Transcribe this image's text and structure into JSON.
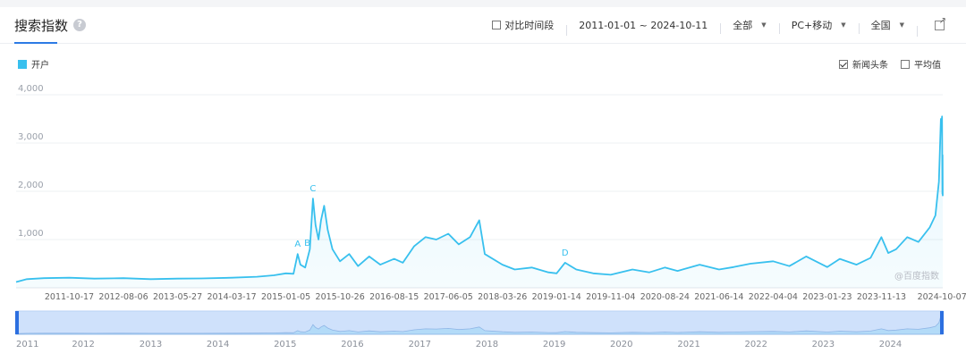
{
  "header": {
    "title": "搜索指数",
    "help_icon": "question-icon",
    "compare_label": "对比时间段",
    "date_range": "2011-01-01 ~ 2024-10-11",
    "scope": "全部",
    "device": "PC+移动",
    "region": "全国",
    "export_icon": "external-link-icon"
  },
  "legend": {
    "label": "开户",
    "color": "#38c0ee"
  },
  "options": {
    "news_label": "新闻头条",
    "news_checked": true,
    "avg_label": "平均值",
    "avg_checked": false
  },
  "watermark": "@百度指数",
  "colors": {
    "line": "#38c0ee",
    "accent": "#2c7be5",
    "grid": "#eef0f3"
  },
  "chart_data": {
    "type": "line",
    "ylim": [
      0,
      4000
    ],
    "yticks": [
      "4,000",
      "3,000",
      "2,000",
      "1,000"
    ],
    "x_ticks": [
      "2011-10-17",
      "2012-08-06",
      "2013-05-27",
      "2014-03-17",
      "2015-01-05",
      "2015-10-26",
      "2016-08-15",
      "2017-06-05",
      "2018-03-26",
      "2019-01-14",
      "2019-11-04",
      "2020-08-24",
      "2021-06-14",
      "2022-04-04",
      "2023-01-23",
      "2023-11-13",
      "2024-10-07"
    ],
    "x_range": [
      "2011-01-01",
      "2024-10-11"
    ],
    "series": [
      {
        "name": "开户",
        "points": [
          [
            "2011-01-01",
            120
          ],
          [
            "2011-03-01",
            180
          ],
          [
            "2011-06-01",
            200
          ],
          [
            "2011-10-17",
            210
          ],
          [
            "2012-03-01",
            190
          ],
          [
            "2012-08-06",
            200
          ],
          [
            "2013-01-01",
            180
          ],
          [
            "2013-05-27",
            190
          ],
          [
            "2013-10-01",
            195
          ],
          [
            "2014-03-17",
            210
          ],
          [
            "2014-08-01",
            230
          ],
          [
            "2014-11-01",
            260
          ],
          [
            "2015-01-05",
            300
          ],
          [
            "2015-02-15",
            290
          ],
          [
            "2015-03-10",
            700
          ],
          [
            "2015-03-25",
            480
          ],
          [
            "2015-04-20",
            420
          ],
          [
            "2015-05-15",
            800
          ],
          [
            "2015-06-01",
            1850
          ],
          [
            "2015-06-15",
            1300
          ],
          [
            "2015-07-01",
            1000
          ],
          [
            "2015-07-15",
            1400
          ],
          [
            "2015-08-01",
            1700
          ],
          [
            "2015-08-20",
            1200
          ],
          [
            "2015-09-15",
            800
          ],
          [
            "2015-10-26",
            550
          ],
          [
            "2015-12-15",
            700
          ],
          [
            "2016-02-01",
            450
          ],
          [
            "2016-04-01",
            650
          ],
          [
            "2016-06-01",
            480
          ],
          [
            "2016-08-15",
            600
          ],
          [
            "2016-10-01",
            520
          ],
          [
            "2016-12-01",
            860
          ],
          [
            "2017-02-01",
            1050
          ],
          [
            "2017-04-01",
            1000
          ],
          [
            "2017-06-05",
            1120
          ],
          [
            "2017-08-01",
            900
          ],
          [
            "2017-10-01",
            1050
          ],
          [
            "2017-11-20",
            1400
          ],
          [
            "2017-12-20",
            700
          ],
          [
            "2018-03-26",
            480
          ],
          [
            "2018-06-01",
            380
          ],
          [
            "2018-09-01",
            420
          ],
          [
            "2018-12-01",
            320
          ],
          [
            "2019-01-14",
            300
          ],
          [
            "2019-03-01",
            520
          ],
          [
            "2019-05-01",
            380
          ],
          [
            "2019-08-01",
            300
          ],
          [
            "2019-11-04",
            270
          ],
          [
            "2020-03-01",
            380
          ],
          [
            "2020-06-01",
            320
          ],
          [
            "2020-08-24",
            420
          ],
          [
            "2020-11-01",
            350
          ],
          [
            "2021-03-01",
            480
          ],
          [
            "2021-06-14",
            380
          ],
          [
            "2021-09-01",
            430
          ],
          [
            "2021-12-01",
            500
          ],
          [
            "2022-04-04",
            550
          ],
          [
            "2022-07-01",
            450
          ],
          [
            "2022-10-01",
            650
          ],
          [
            "2023-01-23",
            430
          ],
          [
            "2023-04-01",
            600
          ],
          [
            "2023-07-01",
            480
          ],
          [
            "2023-09-15",
            620
          ],
          [
            "2023-11-13",
            1050
          ],
          [
            "2023-12-20",
            720
          ],
          [
            "2024-02-01",
            800
          ],
          [
            "2024-04-01",
            1050
          ],
          [
            "2024-06-01",
            950
          ],
          [
            "2024-08-01",
            1250
          ],
          [
            "2024-09-01",
            1500
          ],
          [
            "2024-09-20",
            2200
          ],
          [
            "2024-10-01",
            3500
          ],
          [
            "2024-10-04",
            3300
          ],
          [
            "2024-10-07",
            3550
          ],
          [
            "2024-10-08",
            2900
          ],
          [
            "2024-10-09",
            1950
          ],
          [
            "2024-10-10",
            2750
          ],
          [
            "2024-10-11",
            1900
          ]
        ]
      }
    ],
    "annotations": [
      {
        "label": "A",
        "date": "2015-03-10",
        "value": 700
      },
      {
        "label": "B",
        "date": "2015-05-01",
        "value": 720
      },
      {
        "label": "C",
        "date": "2015-06-01",
        "value": 1850
      },
      {
        "label": "D",
        "date": "2019-03-01",
        "value": 520
      }
    ],
    "navigator_years": [
      "2011",
      "2012",
      "2013",
      "2014",
      "2015",
      "2016",
      "2017",
      "2018",
      "2019",
      "2020",
      "2021",
      "2022",
      "2023",
      "2024"
    ]
  }
}
